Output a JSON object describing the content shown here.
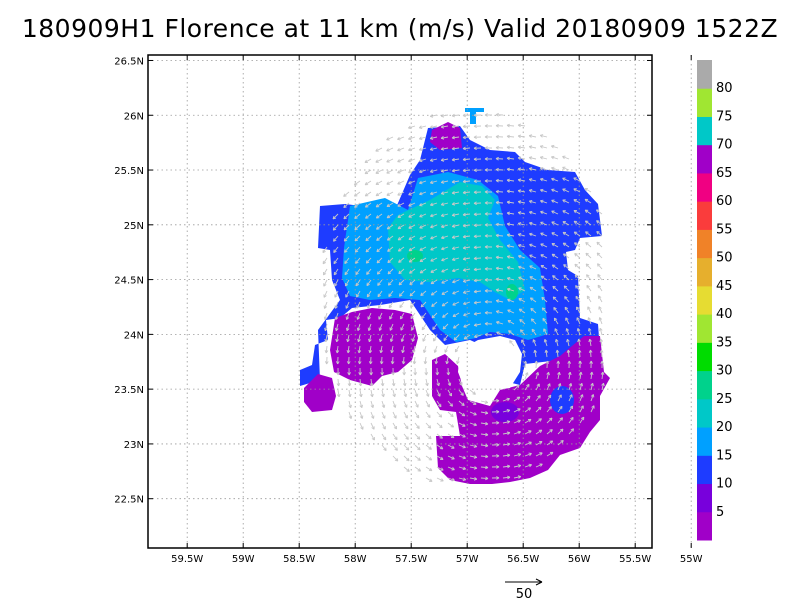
{
  "chart_data": {
    "type": "heatmap",
    "title": "180909H1 Florence at 11 km (m/s) Valid 20180909 1522Z",
    "xlabel": "",
    "ylabel": "",
    "x_ticks": [
      "59.5W",
      "59W",
      "58.5W",
      "58W",
      "57.5W",
      "57W",
      "56.5W",
      "56W",
      "55.5W",
      "55W"
    ],
    "x_tick_values": [
      -59.5,
      -59.0,
      -58.5,
      -58.0,
      -57.5,
      -57.0,
      -56.5,
      -56.0,
      -55.5,
      -55.0
    ],
    "y_ticks": [
      "22.5N",
      "23N",
      "23.5N",
      "24N",
      "24.5N",
      "25N",
      "25.5N",
      "26N",
      "26.5N"
    ],
    "y_tick_values": [
      22.5,
      23.0,
      23.5,
      24.0,
      24.5,
      25.0,
      25.5,
      26.0,
      26.5
    ],
    "xlim": [
      -59.85,
      -55.35
    ],
    "ylim": [
      22.05,
      26.55
    ],
    "grid": true,
    "colorbar": {
      "labels": [
        "5",
        "10",
        "15",
        "20",
        "25",
        "30",
        "35",
        "40",
        "45",
        "50",
        "55",
        "60",
        "65",
        "70",
        "75",
        "80"
      ],
      "colors": [
        "#a000c8",
        "#7800dc",
        "#1e3cff",
        "#00a0ff",
        "#00c8c8",
        "#00d28c",
        "#00dc00",
        "#a0e632",
        "#e6dc32",
        "#e6af2d",
        "#f08228",
        "#fa3c3c",
        "#f00082",
        "#a000c8",
        "#00c8c8",
        "#a0e632",
        "#aaaaaa"
      ]
    },
    "wind_speed_regions": [
      {
        "speed_class": "0-5",
        "color": "#a000c8",
        "description_points": [
          [
            -58.0,
            23.6
          ],
          [
            -57.3,
            23.7
          ],
          [
            -56.3,
            23.0
          ],
          [
            -55.5,
            23.2
          ]
        ]
      },
      {
        "speed_class": "10-15",
        "color": "#1e3cff",
        "description_points": [
          [
            -56.5,
            25.6
          ],
          [
            -55.8,
            25.3
          ],
          [
            -55.3,
            23.8
          ]
        ]
      },
      {
        "speed_class": "15-20",
        "color": "#00a0ff",
        "description_points": [
          [
            -57.8,
            24.9
          ],
          [
            -56.8,
            24.3
          ],
          [
            -56.2,
            24.2
          ]
        ]
      },
      {
        "speed_class": "20-25",
        "color": "#00c8c8",
        "description_points": [
          [
            -57.2,
            24.8
          ],
          [
            -56.7,
            25.0
          ]
        ]
      }
    ],
    "reference_vector": {
      "label": "50"
    }
  }
}
